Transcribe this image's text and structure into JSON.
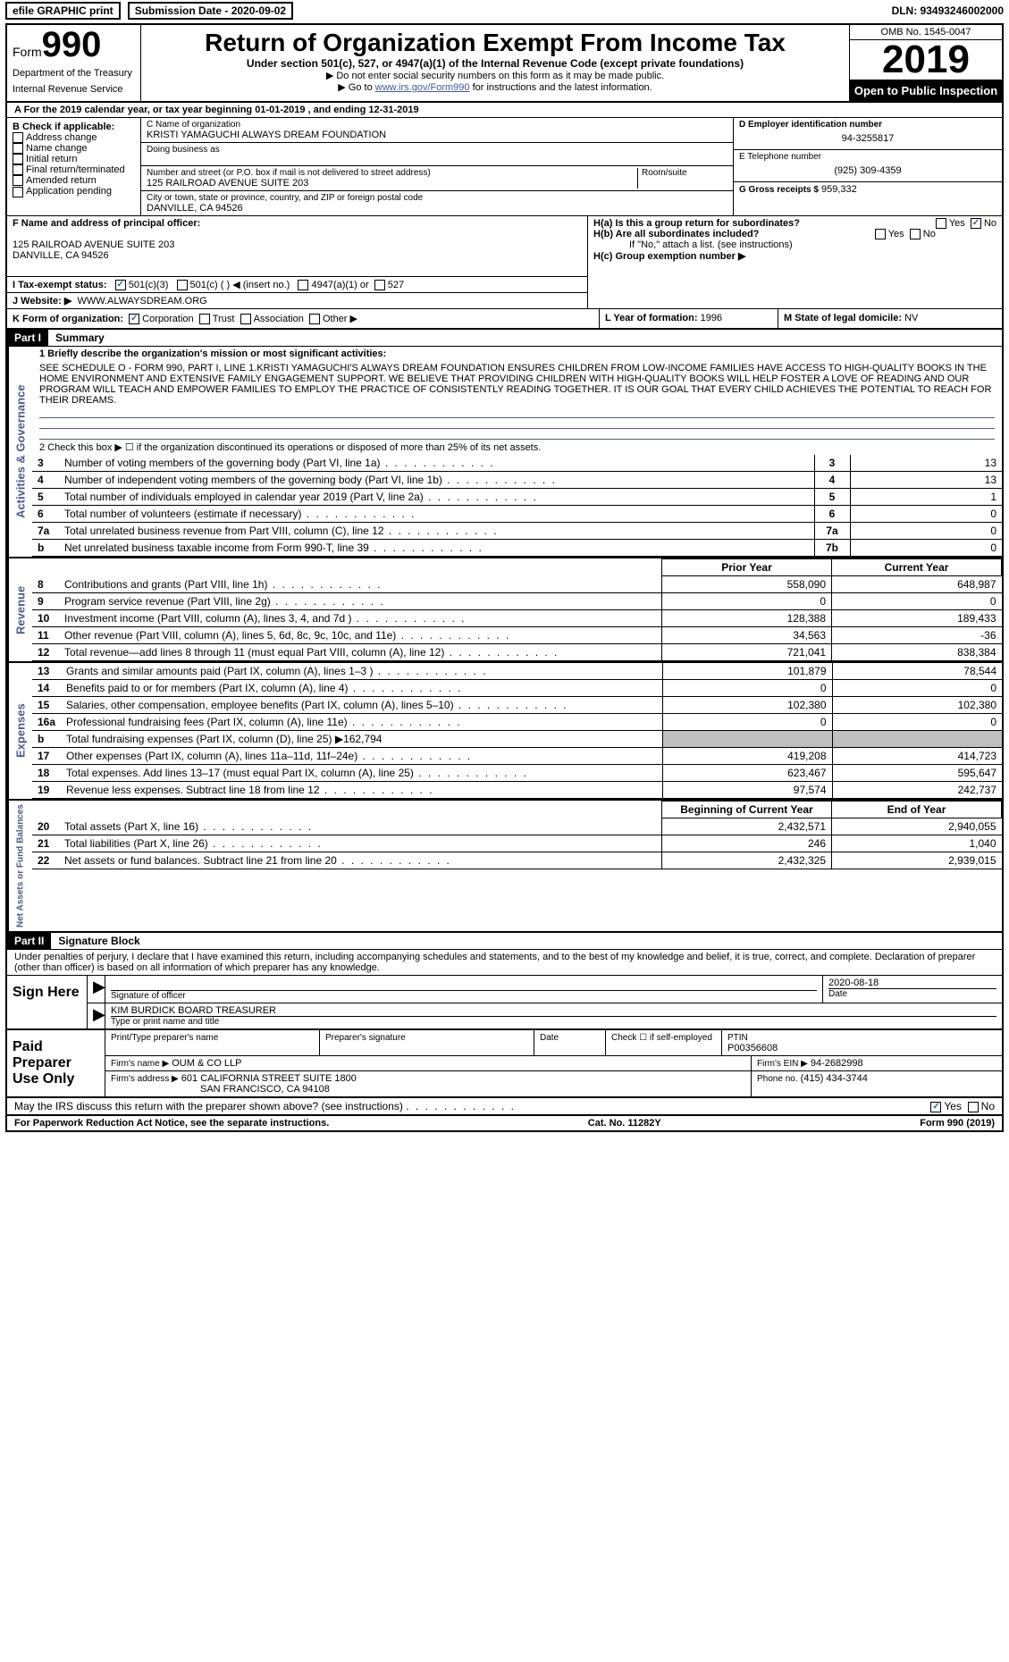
{
  "topbar": {
    "efile_label": "efile GRAPHIC print",
    "submission_label": "Submission Date - 2020-09-02",
    "dln_label": "DLN: 93493246002000"
  },
  "header": {
    "form_word": "Form",
    "form_number": "990",
    "dept1": "Department of the Treasury",
    "dept2": "Internal Revenue Service",
    "title": "Return of Organization Exempt From Income Tax",
    "subtitle": "Under section 501(c), 527, or 4947(a)(1) of the Internal Revenue Code (except private foundations)",
    "instr1": "▶ Do not enter social security numbers on this form as it may be made public.",
    "instr2_prefix": "▶ Go to ",
    "instr2_link": "www.irs.gov/Form990",
    "instr2_suffix": " for instructions and the latest information.",
    "omb": "OMB No. 1545-0047",
    "year": "2019",
    "open_public": "Open to Public Inspection"
  },
  "line_a": "A For the 2019 calendar year, or tax year beginning 01-01-2019   , and ending 12-31-2019",
  "section_b": {
    "heading": "B Check if applicable:",
    "addr_change": "Address change",
    "name_change": "Name change",
    "initial": "Initial return",
    "final": "Final return/terminated",
    "amended": "Amended return",
    "app_pending": "Application pending"
  },
  "section_c": {
    "label": "C Name of organization",
    "name": "KRISTI YAMAGUCHI ALWAYS DREAM FOUNDATION",
    "dba_label": "Doing business as",
    "addr_label": "Number and street (or P.O. box if mail is not delivered to street address)",
    "room_label": "Room/suite",
    "addr": "125 RAILROAD AVENUE SUITE 203",
    "city_label": "City or town, state or province, country, and ZIP or foreign postal code",
    "city": "DANVILLE, CA  94526"
  },
  "section_d": {
    "label": "D Employer identification number",
    "ein": "94-3255817"
  },
  "section_e": {
    "label": "E Telephone number",
    "phone": "(925) 309-4359"
  },
  "section_g": {
    "label": "G Gross receipts $",
    "amount": "959,332"
  },
  "section_f": {
    "label": "F Name and address of principal officer:",
    "addr1": "125 RAILROAD AVENUE SUITE 203",
    "addr2": "DANVILLE, CA  94526"
  },
  "section_h": {
    "ha": "H(a)  Is this a group return for subordinates?",
    "hb": "H(b)  Are all subordinates included?",
    "hb_note": "If \"No,\" attach a list. (see instructions)",
    "hc": "H(c)  Group exemption number ▶",
    "yes": "Yes",
    "no": "No"
  },
  "section_i": {
    "label": "I   Tax-exempt status:",
    "c3": "501(c)(3)",
    "c": "501(c) (  ) ◀ (insert no.)",
    "a1": "4947(a)(1) or",
    "527": "527"
  },
  "section_j": {
    "label": "J  Website: ▶",
    "url": "WWW.ALWAYSDREAM.ORG"
  },
  "section_k": {
    "label": "K Form of organization:",
    "corp": "Corporation",
    "trust": "Trust",
    "assoc": "Association",
    "other": "Other ▶"
  },
  "section_l": {
    "label": "L Year of formation:",
    "year": "1996"
  },
  "section_m": {
    "label": "M State of legal domicile:",
    "state": "NV"
  },
  "part1": {
    "hdr": "Part I",
    "title": "Summary",
    "line1_label": "1  Briefly describe the organization's mission or most significant activities:",
    "mission": "SEE SCHEDULE O - FORM 990, PART I, LINE 1.KRISTI YAMAGUCHI'S ALWAYS DREAM FOUNDATION ENSURES CHILDREN FROM LOW-INCOME FAMILIES HAVE ACCESS TO HIGH-QUALITY BOOKS IN THE HOME ENVIRONMENT AND EXTENSIVE FAMILY ENGAGEMENT SUPPORT. WE BELIEVE THAT PROVIDING CHILDREN WITH HIGH-QUALITY BOOKS WILL HELP FOSTER A LOVE OF READING AND OUR PROGRAM WILL TEACH AND EMPOWER FAMILIES TO EMPLOY THE PRACTICE OF CONSISTENTLY READING TOGETHER. IT IS OUR GOAL THAT EVERY CHILD ACHIEVES THE POTENTIAL TO REACH FOR THEIR DREAMS.",
    "line2": "2  Check this box ▶ ☐ if the organization discontinued its operations or disposed of more than 25% of its net assets.",
    "vert_label_ag": "Activities & Governance",
    "vert_label_rev": "Revenue",
    "vert_label_exp": "Expenses",
    "vert_label_na": "Net Assets or Fund Balances",
    "rows_ag": [
      {
        "n": "3",
        "text": "Number of voting members of the governing body (Part VI, line 1a)",
        "lbl": "3",
        "val": "13"
      },
      {
        "n": "4",
        "text": "Number of independent voting members of the governing body (Part VI, line 1b)",
        "lbl": "4",
        "val": "13"
      },
      {
        "n": "5",
        "text": "Total number of individuals employed in calendar year 2019 (Part V, line 2a)",
        "lbl": "5",
        "val": "1"
      },
      {
        "n": "6",
        "text": "Total number of volunteers (estimate if necessary)",
        "lbl": "6",
        "val": "0"
      },
      {
        "n": "7a",
        "text": "Total unrelated business revenue from Part VIII, column (C), line 12",
        "lbl": "7a",
        "val": "0"
      },
      {
        "n": " b",
        "text": "Net unrelated business taxable income from Form 990-T, line 39",
        "lbl": "7b",
        "val": "0"
      }
    ],
    "col_prior": "Prior Year",
    "col_current": "Current Year",
    "rows_rev": [
      {
        "n": "8",
        "text": "Contributions and grants (Part VIII, line 1h)",
        "p": "558,090",
        "c": "648,987"
      },
      {
        "n": "9",
        "text": "Program service revenue (Part VIII, line 2g)",
        "p": "0",
        "c": "0"
      },
      {
        "n": "10",
        "text": "Investment income (Part VIII, column (A), lines 3, 4, and 7d )",
        "p": "128,388",
        "c": "189,433"
      },
      {
        "n": "11",
        "text": "Other revenue (Part VIII, column (A), lines 5, 6d, 8c, 9c, 10c, and 11e)",
        "p": "34,563",
        "c": "-36"
      },
      {
        "n": "12",
        "text": "Total revenue—add lines 8 through 11 (must equal Part VIII, column (A), line 12)",
        "p": "721,041",
        "c": "838,384"
      }
    ],
    "rows_exp": [
      {
        "n": "13",
        "text": "Grants and similar amounts paid (Part IX, column (A), lines 1–3 )",
        "p": "101,879",
        "c": "78,544"
      },
      {
        "n": "14",
        "text": "Benefits paid to or for members (Part IX, column (A), line 4)",
        "p": "0",
        "c": "0"
      },
      {
        "n": "15",
        "text": "Salaries, other compensation, employee benefits (Part IX, column (A), lines 5–10)",
        "p": "102,380",
        "c": "102,380"
      },
      {
        "n": "16a",
        "text": "Professional fundraising fees (Part IX, column (A), line 11e)",
        "p": "0",
        "c": "0"
      },
      {
        "n": "  b",
        "text": "Total fundraising expenses (Part IX, column (D), line 25) ▶162,794",
        "p": "",
        "c": "",
        "shaded": true
      },
      {
        "n": "17",
        "text": "Other expenses (Part IX, column (A), lines 11a–11d, 11f–24e)",
        "p": "419,208",
        "c": "414,723"
      },
      {
        "n": "18",
        "text": "Total expenses. Add lines 13–17 (must equal Part IX, column (A), line 25)",
        "p": "623,467",
        "c": "595,647"
      },
      {
        "n": "19",
        "text": "Revenue less expenses. Subtract line 18 from line 12",
        "p": "97,574",
        "c": "242,737"
      }
    ],
    "col_boy": "Beginning of Current Year",
    "col_eoy": "End of Year",
    "rows_na": [
      {
        "n": "20",
        "text": "Total assets (Part X, line 16)",
        "p": "2,432,571",
        "c": "2,940,055"
      },
      {
        "n": "21",
        "text": "Total liabilities (Part X, line 26)",
        "p": "246",
        "c": "1,040"
      },
      {
        "n": "22",
        "text": "Net assets or fund balances. Subtract line 21 from line 20",
        "p": "2,432,325",
        "c": "2,939,015"
      }
    ]
  },
  "part2": {
    "hdr": "Part II",
    "title": "Signature Block",
    "perjury": "Under penalties of perjury, I declare that I have examined this return, including accompanying schedules and statements, and to the best of my knowledge and belief, it is true, correct, and complete. Declaration of preparer (other than officer) is based on all information of which preparer has any knowledge.",
    "sign_here": "Sign Here",
    "sig_officer": "Signature of officer",
    "sig_date": "Date",
    "sig_date_val": "2020-08-18",
    "officer_name": "KIM BURDICK  BOARD TREASURER",
    "officer_label": "Type or print name and title",
    "paid_preparer": "Paid Preparer Use Only",
    "prep_name_label": "Print/Type preparer's name",
    "prep_sig_label": "Preparer's signature",
    "prep_date": "Date",
    "check_self": "Check ☐ if self-employed",
    "ptin_label": "PTIN",
    "ptin": "P00356608",
    "firm_name_label": "Firm's name    ▶",
    "firm_name": "OUM & CO LLP",
    "firm_ein_label": "Firm's EIN ▶",
    "firm_ein": "94-2682998",
    "firm_addr_label": "Firm's address ▶",
    "firm_addr1": "601 CALIFORNIA STREET SUITE 1800",
    "firm_addr2": "SAN FRANCISCO, CA  94108",
    "phone_label": "Phone no.",
    "phone": "(415) 434-3744",
    "discuss": "May the IRS discuss this return with the preparer shown above? (see instructions)",
    "yes": "Yes",
    "no": "No"
  },
  "footer": {
    "left": "For Paperwork Reduction Act Notice, see the separate instructions.",
    "center": "Cat. No. 11282Y",
    "right": "Form 990 (2019)"
  }
}
